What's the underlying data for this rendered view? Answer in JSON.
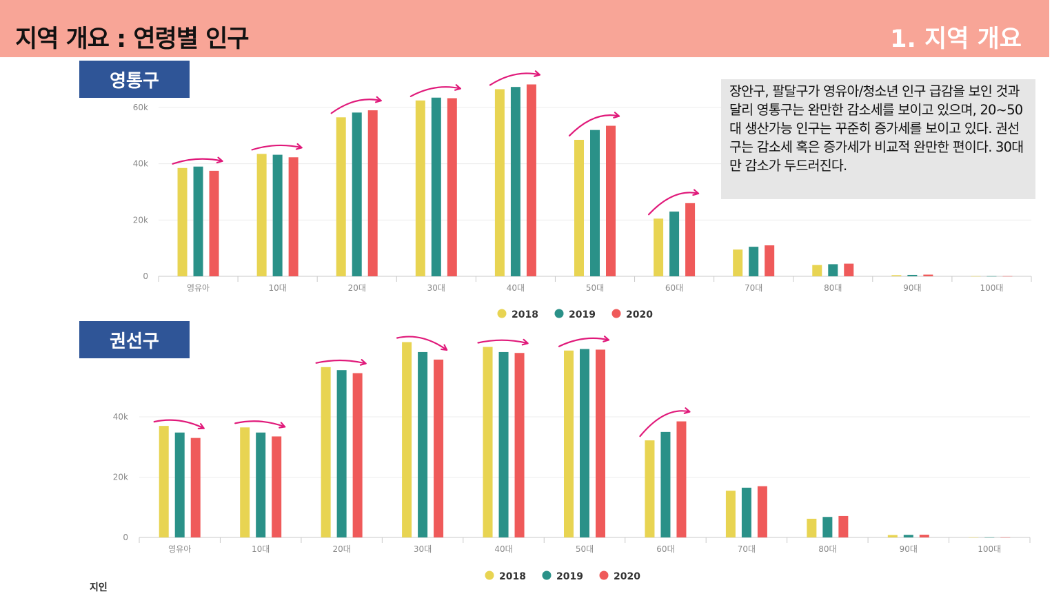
{
  "header": {
    "title": "지역 개요 : 연령별 인구",
    "section": "1. 지역 개요"
  },
  "note": "장안구, 팔달구가 영유아/청소년 인구 급감을 보인 것과 달리 영통구는 완만한 감소세를 보이고 있으며, 20~50대 생산가능 인구는 꾸준히 증가세를 보이고 있다. 권선구는 감소세 혹은 증가세가 비교적 완만한 편이다. 30대만 감소가 두드러진다.",
  "footer_mark": "지인",
  "colors": {
    "header_bg": "#f8a597",
    "label_bg": "#2f5597",
    "series_2018": "#e8d452",
    "series_2019": "#2a9188",
    "series_2020": "#ef5a5a",
    "arrow": "#e0197a"
  },
  "chart_data": [
    {
      "type": "bar",
      "region": "영통구",
      "categories": [
        "영유아",
        "10대",
        "20대",
        "30대",
        "40대",
        "50대",
        "60대",
        "70대",
        "80대",
        "90대",
        "100대"
      ],
      "y_ticks": [
        "0",
        "20k",
        "40k",
        "60k"
      ],
      "ylim": [
        0,
        60000
      ],
      "series": [
        {
          "name": "2018",
          "values": [
            38500,
            43500,
            56500,
            62500,
            66500,
            48500,
            20500,
            9500,
            4000,
            400,
            50
          ]
        },
        {
          "name": "2019",
          "values": [
            39000,
            43200,
            58200,
            63500,
            67300,
            52000,
            23000,
            10500,
            4300,
            500,
            50
          ]
        },
        {
          "name": "2020",
          "values": [
            37500,
            42300,
            59000,
            63300,
            68200,
            53500,
            26000,
            11000,
            4500,
            600,
            60
          ]
        }
      ],
      "trend_arrows": [
        0,
        1,
        2,
        3,
        4,
        5,
        6
      ],
      "legend_position": "bottom",
      "grid": true
    },
    {
      "type": "bar",
      "region": "권선구",
      "categories": [
        "영유아",
        "10대",
        "20대",
        "30대",
        "40대",
        "50대",
        "60대",
        "70대",
        "80대",
        "90대",
        "100대"
      ],
      "y_ticks": [
        "0",
        "20k",
        "40k"
      ],
      "ylim": [
        0,
        60000
      ],
      "series": [
        {
          "name": "2018",
          "values": [
            37000,
            36500,
            56500,
            64800,
            63200,
            62000,
            32200,
            15500,
            6200,
            800,
            40
          ]
        },
        {
          "name": "2019",
          "values": [
            34800,
            34800,
            55500,
            61500,
            61500,
            62500,
            35000,
            16500,
            6800,
            850,
            40
          ]
        },
        {
          "name": "2020",
          "values": [
            33000,
            33500,
            54500,
            59000,
            61200,
            62300,
            38500,
            17000,
            7100,
            900,
            50
          ]
        }
      ],
      "trend_arrows": [
        0,
        1,
        2,
        3,
        4,
        5,
        6
      ],
      "legend_position": "bottom",
      "grid": true
    }
  ]
}
